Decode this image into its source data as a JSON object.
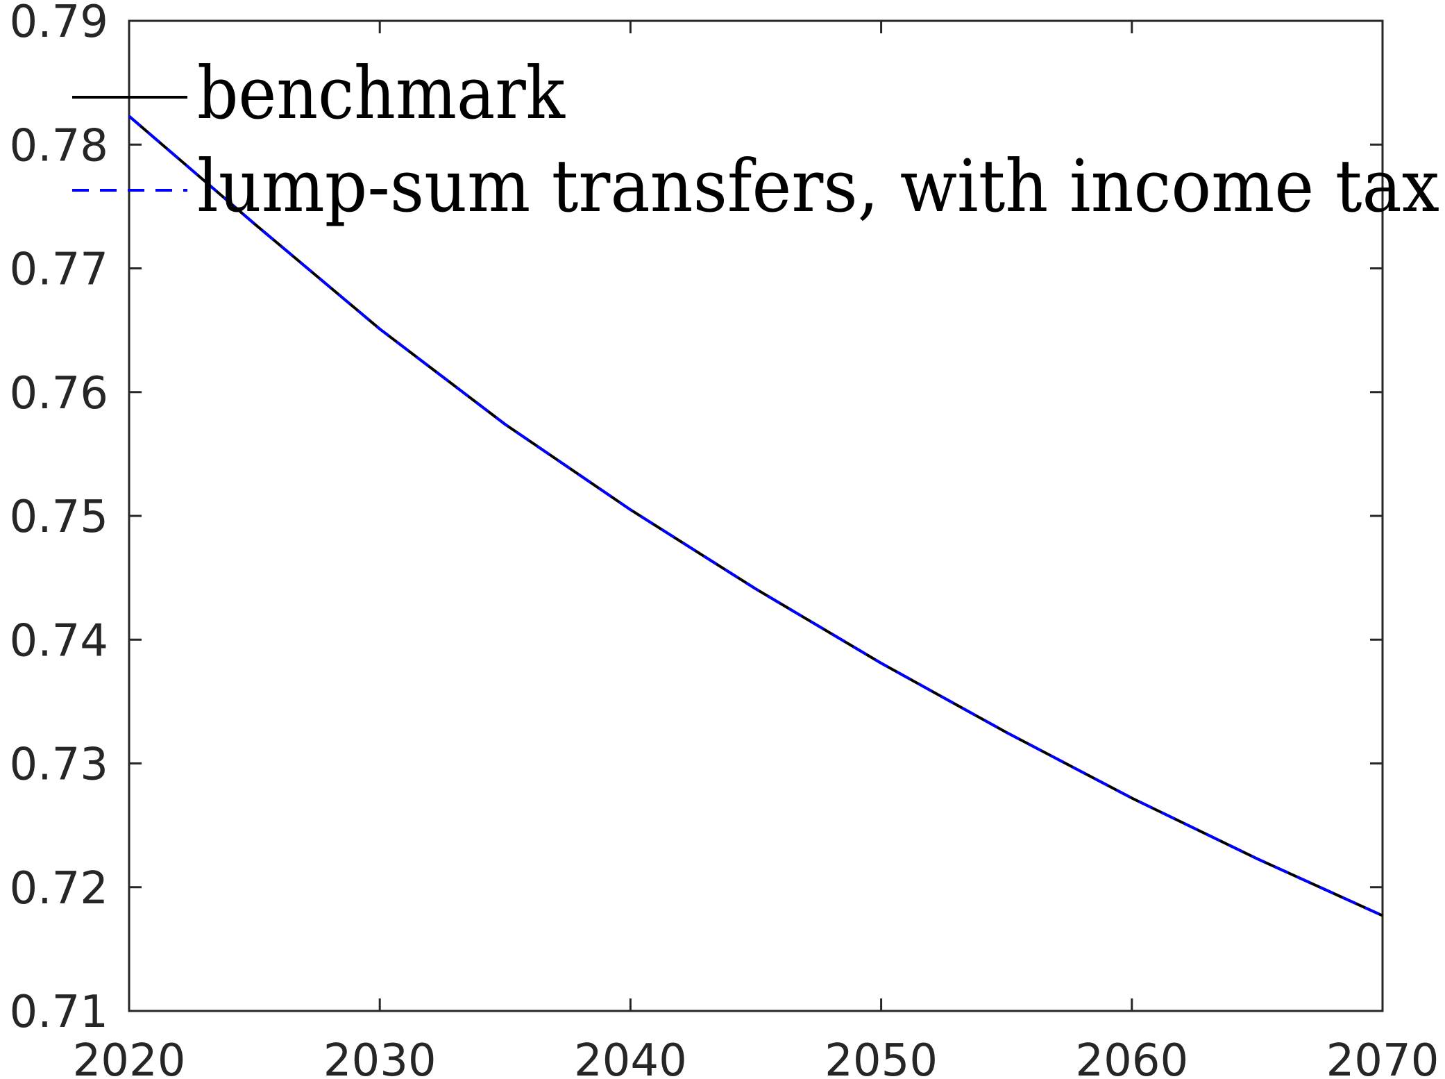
{
  "chart_data": {
    "type": "line",
    "title": "",
    "xlabel": "",
    "ylabel": "",
    "xlim": [
      2020,
      2070
    ],
    "ylim": [
      0.71,
      0.79
    ],
    "xticks": [
      2020,
      2030,
      2040,
      2050,
      2060,
      2070
    ],
    "yticks": [
      0.71,
      0.72,
      0.73,
      0.74,
      0.75,
      0.76,
      0.77,
      0.78,
      0.79
    ],
    "xtick_labels": [
      "2020",
      "2030",
      "2040",
      "2050",
      "2060",
      "2070"
    ],
    "ytick_labels": [
      "0.71",
      "0.72",
      "0.73",
      "0.74",
      "0.75",
      "0.76",
      "0.77",
      "0.78",
      "0.79"
    ],
    "grid": false,
    "legend_position": "top-left",
    "x": [
      2020,
      2025,
      2030,
      2035,
      2040,
      2045,
      2050,
      2055,
      2060,
      2065,
      2070
    ],
    "series": [
      {
        "name": "benchmark",
        "style": "solid",
        "color": "#000000",
        "values": [
          0.7823,
          0.7736,
          0.7651,
          0.7574,
          0.7505,
          0.7441,
          0.7381,
          0.7325,
          0.7272,
          0.7223,
          0.7177
        ]
      },
      {
        "name": "lump-sum transfers, with income tax",
        "style": "dashed",
        "color": "#0000ff",
        "values": [
          0.7823,
          0.7736,
          0.7651,
          0.7574,
          0.7505,
          0.7441,
          0.7381,
          0.7325,
          0.7272,
          0.7223,
          0.7177
        ]
      }
    ]
  }
}
